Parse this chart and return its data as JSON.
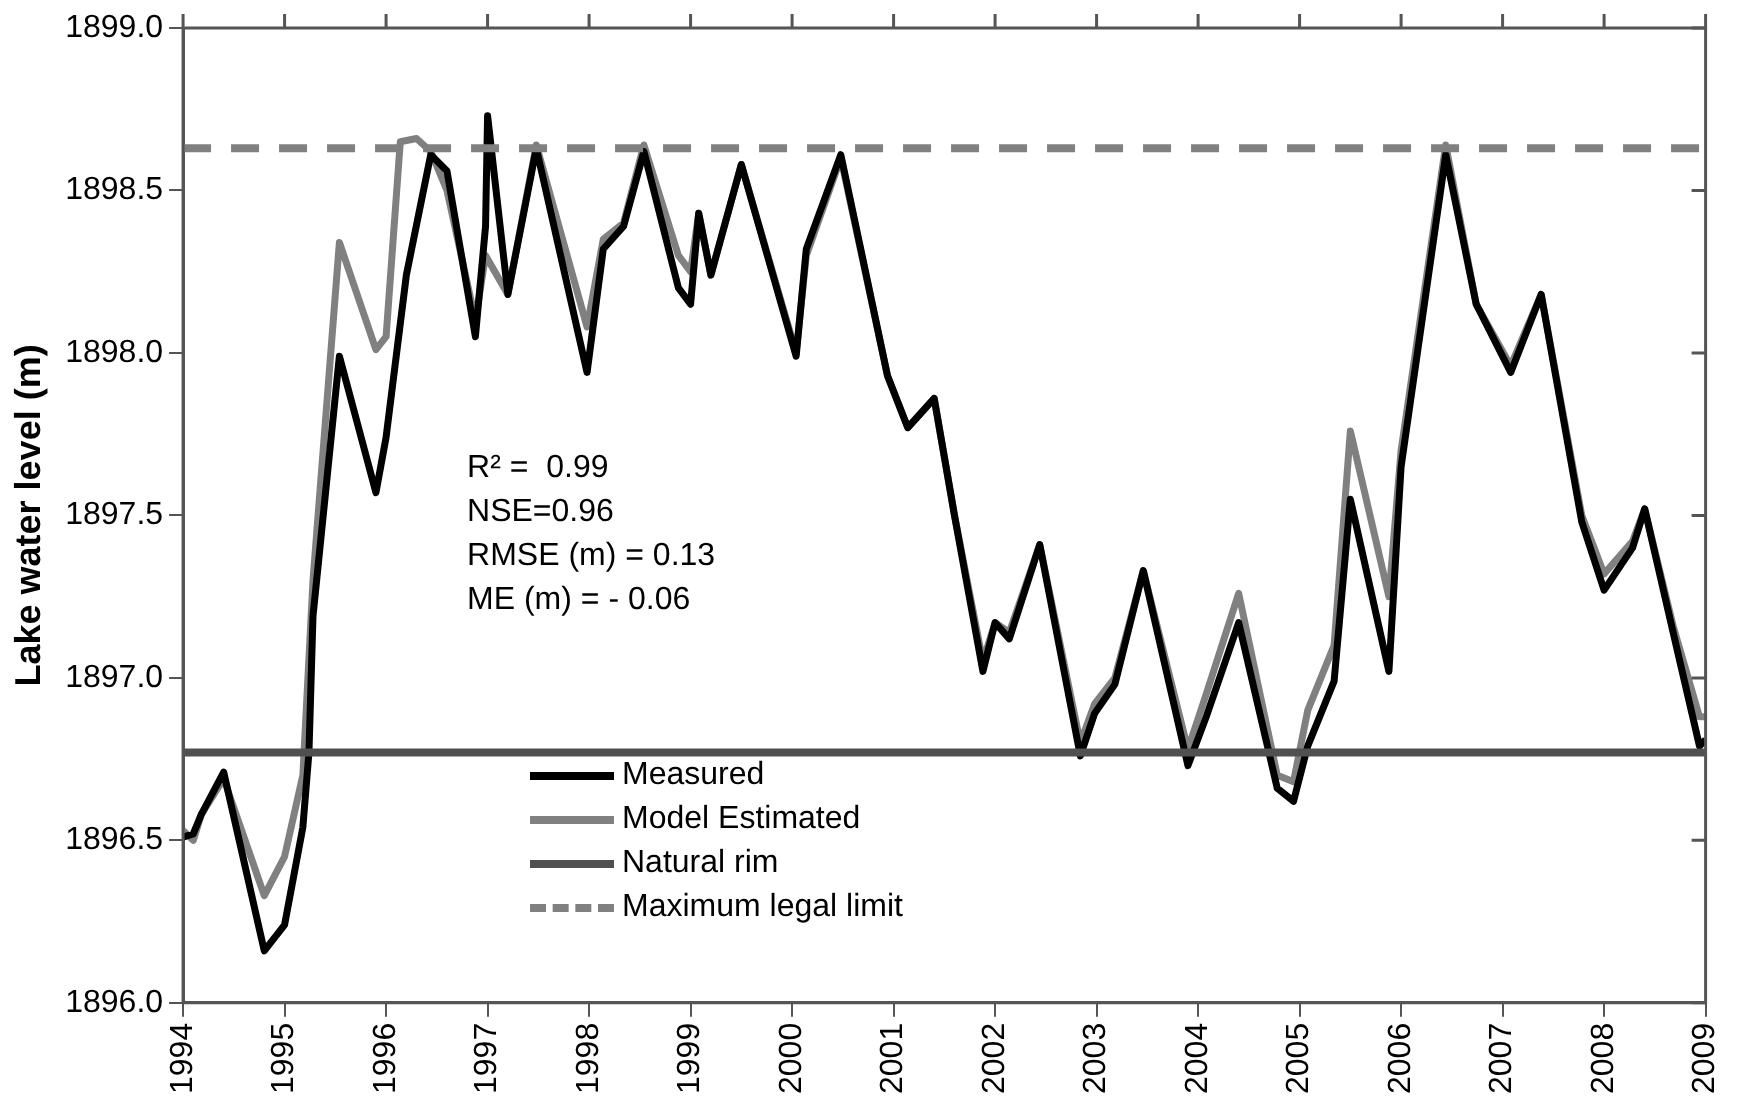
{
  "chart_data": {
    "type": "line",
    "ylabel": "Lake water level (m)",
    "xlim": [
      1994,
      2009
    ],
    "xticks": [
      1994,
      1995,
      1996,
      1997,
      1998,
      1999,
      2000,
      2001,
      2002,
      2003,
      2004,
      2005,
      2006,
      2007,
      2008,
      2009
    ],
    "ylim": [
      1896.0,
      1899.0
    ],
    "yticks": [
      {
        "value": 1896,
        "label": "1896.0"
      },
      {
        "value": 1896.5,
        "label": "1896.5"
      },
      {
        "value": 1897,
        "label": "1897.0"
      },
      {
        "value": 1897.5,
        "label": "1897.5"
      },
      {
        "value": 1898,
        "label": "1898.0"
      },
      {
        "value": 1898.5,
        "label": "1898.5"
      },
      {
        "value": 1899,
        "label": "1899.0"
      }
    ],
    "grid": false,
    "legend": "bottom",
    "marker": "none",
    "line_style": "solid",
    "series": [
      {
        "name": "Measured",
        "color": "#000000",
        "x": [
          1994.0,
          1994.1,
          1994.18,
          1994.4,
          1994.8,
          1995.0,
          1995.18,
          1995.24,
          1995.28,
          1995.54,
          1995.9,
          1996.0,
          1996.2,
          1996.44,
          1996.6,
          1996.88,
          1996.98,
          1997.0,
          1997.2,
          1997.48,
          1997.98,
          1998.14,
          1998.34,
          1998.54,
          1998.88,
          1999.0,
          1999.08,
          1999.2,
          1999.5,
          2000.04,
          2000.14,
          2000.48,
          2000.94,
          2001.14,
          2001.4,
          2001.6,
          2001.88,
          2002.0,
          2002.14,
          2002.44,
          2002.84,
          2002.98,
          2003.18,
          2003.46,
          2003.9,
          2004.08,
          2004.4,
          2004.78,
          2004.94,
          2005.08,
          2005.34,
          2005.5,
          2005.88,
          2006.0,
          2006.44,
          2006.74,
          2007.08,
          2007.38,
          2007.78,
          2008.0,
          2008.28,
          2008.4,
          2008.68,
          2008.94,
          2009.0
        ],
        "values": [
          1896.51,
          1896.52,
          1896.58,
          1896.71,
          1896.16,
          1896.24,
          1896.54,
          1896.77,
          1897.19,
          1897.99,
          1897.57,
          1897.74,
          1898.24,
          1898.61,
          1898.56,
          1898.05,
          1898.39,
          1898.73,
          1898.18,
          1898.63,
          1897.94,
          1898.32,
          1898.39,
          1898.62,
          1898.2,
          1898.15,
          1898.43,
          1898.24,
          1898.58,
          1897.99,
          1898.32,
          1898.61,
          1897.93,
          1897.77,
          1897.86,
          1897.5,
          1897.02,
          1897.17,
          1897.12,
          1897.41,
          1896.76,
          1896.89,
          1896.98,
          1897.33,
          1896.73,
          1896.88,
          1897.17,
          1896.66,
          1896.62,
          1896.79,
          1896.99,
          1897.55,
          1897.02,
          1897.65,
          1898.61,
          1898.15,
          1897.94,
          1898.18,
          1897.48,
          1897.27,
          1897.4,
          1897.52,
          1897.14,
          1896.79,
          1896.81
        ]
      },
      {
        "name": "Model Estimated",
        "color": "#808080",
        "x": [
          1994.0,
          1994.1,
          1994.18,
          1994.4,
          1994.8,
          1995.0,
          1995.18,
          1995.28,
          1995.54,
          1995.9,
          1996.0,
          1996.14,
          1996.3,
          1996.44,
          1996.6,
          1996.88,
          1996.98,
          1997.2,
          1997.48,
          1997.98,
          1998.14,
          1998.34,
          1998.54,
          1998.88,
          1999.0,
          1999.08,
          1999.2,
          1999.5,
          2000.04,
          2000.14,
          2000.48,
          2000.94,
          2001.14,
          2001.4,
          2001.6,
          2001.88,
          2002.0,
          2002.14,
          2002.44,
          2002.84,
          2002.98,
          2003.18,
          2003.46,
          2003.9,
          2004.08,
          2004.4,
          2004.78,
          2004.94,
          2005.08,
          2005.34,
          2005.5,
          2005.88,
          2006.0,
          2006.44,
          2006.74,
          2007.08,
          2007.38,
          2007.78,
          2008.0,
          2008.28,
          2008.4,
          2008.68,
          2008.94,
          2009.0
        ],
        "values": [
          1896.53,
          1896.5,
          1896.58,
          1896.69,
          1896.33,
          1896.45,
          1896.7,
          1897.3,
          1898.34,
          1898.01,
          1898.05,
          1898.65,
          1898.66,
          1898.62,
          1898.5,
          1898.1,
          1898.3,
          1898.18,
          1898.64,
          1898.08,
          1898.35,
          1898.4,
          1898.64,
          1898.3,
          1898.25,
          1898.43,
          1898.24,
          1898.58,
          1898.0,
          1898.3,
          1898.6,
          1897.93,
          1897.77,
          1897.86,
          1897.5,
          1897.05,
          1897.17,
          1897.14,
          1897.41,
          1896.8,
          1896.92,
          1897.0,
          1897.33,
          1896.78,
          1896.95,
          1897.26,
          1896.7,
          1896.68,
          1896.9,
          1897.1,
          1897.76,
          1897.25,
          1897.7,
          1898.64,
          1898.15,
          1897.96,
          1898.18,
          1897.5,
          1897.32,
          1897.42,
          1897.52,
          1897.16,
          1896.88,
          1896.88
        ]
      }
    ],
    "ref_lines": [
      {
        "axis": "y",
        "value": 1896.77,
        "label": "Natural rim",
        "color": "#505050",
        "line_style": "solid"
      },
      {
        "axis": "y",
        "value": 1898.63,
        "label": "Maximum legal limit",
        "color": "#808080",
        "line_style": "dashed"
      }
    ],
    "annotations": [
      "R² =  0.99",
      "NSE=0.96",
      "RMSE (m) = 0.13",
      "ME (m) = - 0.06"
    ]
  }
}
